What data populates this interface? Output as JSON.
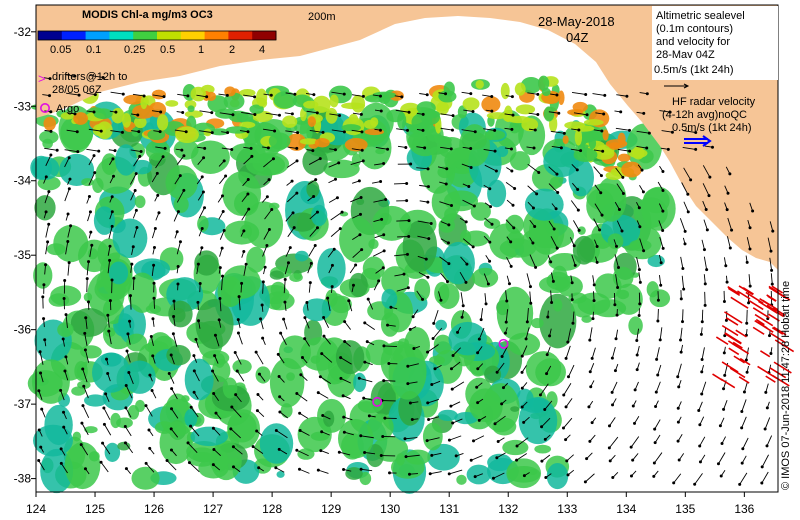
{
  "colorbar": {
    "title": "MODIS Chl-a mg/m3 OC3",
    "ticks": [
      "0.05",
      "0.1",
      "0.25",
      "0.5",
      "1",
      "2",
      "4"
    ],
    "colors": [
      "#000090",
      "#0020ff",
      "#00a0ff",
      "#00e0c0",
      "#40d040",
      "#c0e000",
      "#ffd000",
      "#ff8000",
      "#e02000",
      "#900000"
    ]
  },
  "labels": {
    "contour_200m": "200m",
    "date": "28-May-2018",
    "time": "04Z",
    "drifters_marker": ">",
    "drifters_line1": "drifters@12h to",
    "drifters_line2": "28/05 06Z",
    "argo_marker": "o",
    "argo_label": "Argo"
  },
  "legend_altimetry": {
    "lines": [
      "Altimetric sealevel",
      "(0.1m contours)",
      "and velocity for",
      "28-May 04Z",
      "0.5m/s (1kt 24h)"
    ]
  },
  "legend_hf": {
    "lines": [
      "HF radar velocity",
      "(4-12h avg)noQC",
      "0.5m/s (1kt 24h)"
    ]
  },
  "credit": "© IMOS 07-Jun-2018 11:47:28 Hobart time",
  "axes": {
    "x_ticks": [
      "124",
      "125",
      "126",
      "127",
      "128",
      "129",
      "130",
      "131",
      "132",
      "133",
      "134",
      "135",
      "136"
    ],
    "y_ticks": [
      "-32",
      "-33",
      "-34",
      "-35",
      "-36",
      "-37",
      "-38"
    ]
  },
  "colors": {
    "land": "#f6c596",
    "ocean": "#ffffff",
    "chl_main": "#3cc84a",
    "chl_dark": "#12b89c",
    "chl_yellow": "#b6e21c",
    "chl_orange": "#f08a10",
    "vector": "#000000",
    "hf_vector": "#e00000",
    "argo": "#e010e0"
  },
  "argo_floats": [
    {
      "lon": 129.78,
      "lat": -36.97
    },
    {
      "lon": 131.92,
      "lat": -36.19
    }
  ]
}
